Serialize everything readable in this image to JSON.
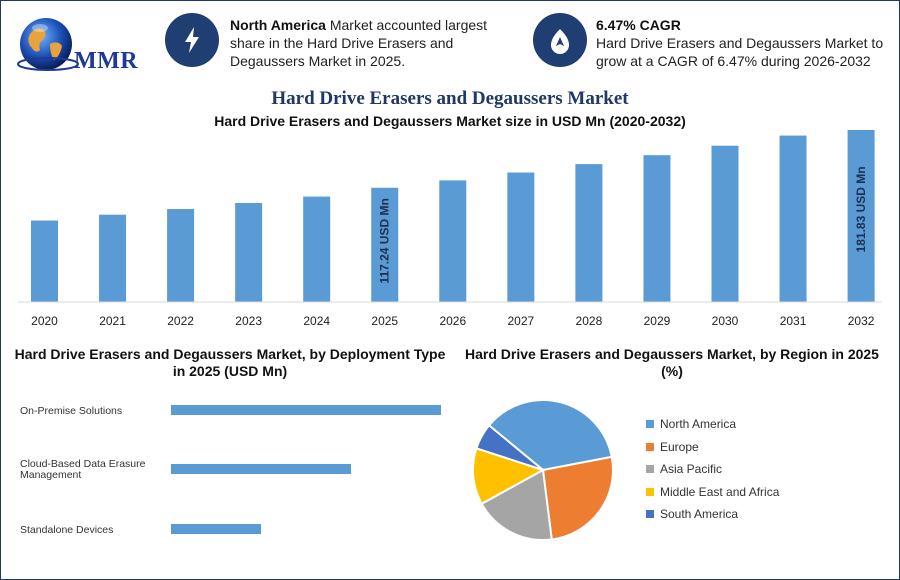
{
  "brand": {
    "logo_text": "MMR"
  },
  "highlights": [
    {
      "icon": "lightning-icon",
      "bold": "North America",
      "text": " Market accounted largest share in the Hard Drive Erasers and Degaussers Market in 2025."
    },
    {
      "icon": "growth-icon",
      "bold": "6.47% CAGR",
      "text": "Hard Drive Erasers and Degaussers Market to grow at a CAGR of 6.47% during 2026-2032"
    }
  ],
  "header": {
    "title": "Hard Drive Erasers and Degaussers Market",
    "subtitle": "Hard Drive Erasers and Degaussers Market size in USD Mn (2020-2032)"
  },
  "colors": {
    "bar": "#5b9bd5",
    "navy": "#1f3864"
  },
  "chart_data": [
    {
      "type": "bar",
      "title": "Hard Drive Erasers and Degaussers Market size in USD Mn (2020-2032)",
      "categories": [
        "2020",
        "2021",
        "2022",
        "2023",
        "2024",
        "2025",
        "2026",
        "2027",
        "2028",
        "2029",
        "2030",
        "2031",
        "2032"
      ],
      "values": [
        83.6,
        89.6,
        95.4,
        101.6,
        108.2,
        117.24,
        124.8,
        132.9,
        141.5,
        150.7,
        160.4,
        170.8,
        181.83
      ],
      "data_labels": [
        {
          "category": "2025",
          "text": "117.24 USD Mn"
        },
        {
          "category": "2032",
          "text": "181.83 USD Mn"
        }
      ],
      "ylim": [
        0,
        195
      ]
    },
    {
      "type": "bar",
      "orientation": "horizontal",
      "title": "Hard Drive Erasers and Degaussers Market, by Deployment Type in 2025 (USD Mn)",
      "categories": [
        "On-Premise Solutions",
        "Cloud-Based Data Erasure Management",
        "Standalone Devices"
      ],
      "category_lines": [
        [
          "On-Premise Solutions"
        ],
        [
          "Cloud-Based Data Erasure",
          "Management"
        ],
        [
          "Standalone Devices"
        ]
      ],
      "values": [
        63,
        42,
        21
      ],
      "xlim": [
        0,
        63
      ]
    },
    {
      "type": "pie",
      "title": "Hard Drive Erasers and Degaussers Market, by Region in 2025 (%)",
      "categories": [
        "North America",
        "Europe",
        "Asia Pacific",
        "Middle East and Africa",
        "South America"
      ],
      "values": [
        36,
        26,
        19,
        13,
        6
      ],
      "colors": [
        "#5b9bd5",
        "#ed7d31",
        "#a5a5a5",
        "#ffc000",
        "#4472c4"
      ],
      "legend": "right"
    }
  ]
}
